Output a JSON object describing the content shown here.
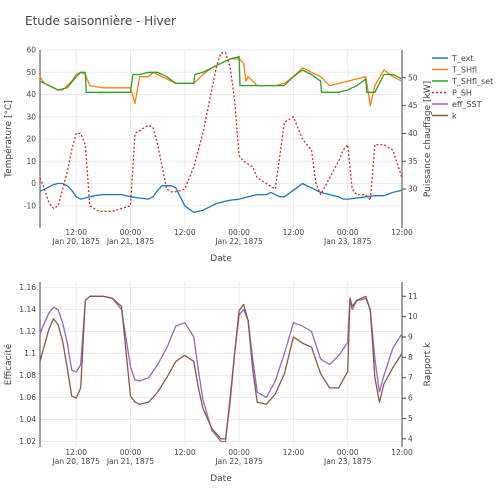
{
  "figure": {
    "title": "Etude saisonnière - Hiver"
  },
  "colors": {
    "T_ext": "#1f77b4",
    "T_SHfl": "#ff7f0e",
    "T_SHfl_set": "#2ca02c",
    "P_SH": "#d62728",
    "eff_SST": "#9467bd",
    "k": "#8c564b",
    "grid": "#ebebeb",
    "axis_line": "#444444"
  },
  "chart_data": [
    {
      "type": "line",
      "title": "",
      "xlabel": "Date",
      "ylabel": "Température [°C]",
      "y2label": "Puissance chauffage [kW]",
      "x_ticks": [
        {
          "h": 12,
          "label": "12:00",
          "sub": "Jan 20, 1875"
        },
        {
          "h": 24,
          "label": "00:00",
          "sub": "Jan 21, 1875"
        },
        {
          "h": 36,
          "label": "12:00",
          "sub": ""
        },
        {
          "h": 48,
          "label": "00:00",
          "sub": "Jan 22, 1875"
        },
        {
          "h": 60,
          "label": "12:00",
          "sub": ""
        },
        {
          "h": 72,
          "label": "00:00",
          "sub": "Jan 23, 1875"
        },
        {
          "h": 84,
          "label": "12:00",
          "sub": ""
        }
      ],
      "xlim_hours": [
        4,
        84
      ],
      "ylim": [
        -20,
        60
      ],
      "yticks": [
        -10,
        0,
        10,
        20,
        30,
        40,
        50,
        60
      ],
      "y2lim": [
        23,
        55
      ],
      "y2ticks": [
        30,
        35,
        40,
        45,
        50
      ],
      "grid": true,
      "legend": "right",
      "series": [
        {
          "name": "T_ext",
          "axis": "y",
          "dash": false,
          "x": [
            4,
            5,
            6,
            7,
            8,
            9,
            10,
            11,
            12,
            13,
            14,
            15,
            16,
            18,
            20,
            22,
            24,
            26,
            28,
            29,
            30,
            31,
            32,
            33,
            34,
            36,
            38,
            40,
            42,
            43,
            44,
            45,
            46,
            48,
            50,
            52,
            54,
            55,
            56,
            57,
            58,
            60,
            62,
            64,
            66,
            68,
            69,
            70,
            71,
            72,
            74,
            76,
            78,
            80,
            82,
            84
          ],
          "y": [
            -3.5,
            -2.5,
            -1.5,
            -0.5,
            0,
            0,
            -1,
            -3,
            -6,
            -7,
            -6.5,
            -6,
            -5.5,
            -5,
            -5,
            -5,
            -6,
            -6.5,
            -7,
            -6,
            -3,
            -1,
            -1,
            -1,
            -2,
            -10,
            -13,
            -12,
            -10,
            -9,
            -8.5,
            -8,
            -7.5,
            -7,
            -6,
            -5,
            -5,
            -4,
            -5,
            -6,
            -6,
            -3,
            0,
            -2,
            -4,
            -5,
            -5.5,
            -6,
            -7,
            -7,
            -6.5,
            -6,
            -5.5,
            -5.5,
            -4,
            -3
          ]
        },
        {
          "name": "T_SHfl",
          "axis": "y",
          "dash": false,
          "x": [
            4,
            5,
            6,
            7,
            8,
            9,
            10,
            11,
            12,
            13,
            14,
            15,
            18,
            22,
            24,
            25,
            26,
            28,
            29,
            30,
            32,
            34,
            36,
            38,
            40,
            42,
            44,
            46,
            48,
            49,
            49.5,
            50,
            51,
            52,
            54,
            56,
            58,
            60,
            62,
            64,
            66,
            67,
            68,
            70,
            72,
            74,
            76,
            77,
            78,
            80,
            82,
            84
          ],
          "y": [
            48,
            45,
            44,
            43,
            42,
            42,
            44,
            46,
            49,
            50,
            49,
            44,
            43,
            43,
            43,
            36,
            48,
            48,
            50,
            49,
            47,
            45,
            45,
            45,
            49,
            52,
            54,
            56,
            56,
            54,
            46,
            48,
            46,
            44,
            44,
            44,
            45,
            48,
            52,
            50,
            48,
            46,
            44,
            45,
            46,
            47,
            48,
            35,
            44,
            51,
            48,
            46
          ]
        },
        {
          "name": "T_SHfl_set",
          "axis": "y",
          "dash": false,
          "x": [
            4,
            6,
            8,
            10,
            12,
            13,
            14,
            14.2,
            18,
            24,
            24.5,
            26,
            28,
            30,
            32,
            34,
            36,
            38,
            38.2,
            40,
            42,
            44,
            46,
            48,
            48.2,
            52,
            56,
            58,
            60,
            62,
            64,
            66,
            66.2,
            70,
            72,
            74,
            76,
            76.2,
            78,
            80,
            82,
            84
          ],
          "y": [
            46,
            44,
            42,
            43,
            48,
            50,
            50,
            41,
            41,
            41,
            49,
            49,
            50,
            50,
            48,
            45,
            45,
            45,
            49,
            50,
            52,
            54,
            56,
            57,
            44,
            44,
            44,
            44,
            48,
            51,
            49,
            46,
            41,
            41,
            42,
            44,
            47,
            41,
            41,
            49,
            49,
            47
          ]
        },
        {
          "name": "P_SH",
          "axis": "y2",
          "dash": true,
          "x": [
            4,
            5,
            6,
            7,
            8,
            9,
            10,
            11,
            12,
            13,
            14,
            15,
            17,
            20,
            22,
            24,
            25,
            26,
            28,
            29,
            30,
            31,
            32,
            33,
            34,
            36,
            37,
            38,
            40,
            41,
            42,
            43,
            44,
            45,
            46,
            47,
            48,
            48.5,
            49,
            51,
            52,
            54,
            55,
            56,
            58,
            60,
            62,
            64,
            65,
            66,
            68,
            70,
            71,
            72,
            73,
            74,
            76,
            77,
            78,
            80,
            82,
            84
          ],
          "y": [
            32,
            30,
            27.5,
            26.5,
            27,
            30,
            33,
            37,
            40,
            40,
            38,
            27,
            26,
            26,
            26.5,
            27,
            40,
            40.5,
            41.5,
            41,
            38,
            34,
            30,
            29.5,
            29.5,
            30,
            32,
            34,
            40,
            44,
            48,
            52,
            54.5,
            54.5,
            52,
            46,
            36,
            35.5,
            35,
            34,
            32,
            31,
            30.5,
            30,
            42,
            43,
            39,
            37,
            31,
            29,
            32,
            35,
            37,
            38,
            30,
            29,
            29,
            28,
            38,
            38,
            37,
            32
          ]
        },
        {
          "name": "eff_SST",
          "axis": "none",
          "dash": false,
          "legend_only": true,
          "x": [],
          "y": []
        },
        {
          "name": "k",
          "axis": "none",
          "dash": false,
          "legend_only": true,
          "x": [],
          "y": []
        }
      ]
    },
    {
      "type": "line",
      "title": "",
      "xlabel": "Date",
      "ylabel": "Efficacité",
      "y2label": "Rapport k",
      "x_ticks": [
        {
          "h": 12,
          "label": "12:00",
          "sub": "Jan 20, 1875"
        },
        {
          "h": 24,
          "label": "00:00",
          "sub": "Jan 21, 1875"
        },
        {
          "h": 36,
          "label": "12:00",
          "sub": ""
        },
        {
          "h": 48,
          "label": "00:00",
          "sub": "Jan 22, 1875"
        },
        {
          "h": 60,
          "label": "12:00",
          "sub": ""
        },
        {
          "h": 72,
          "label": "00:00",
          "sub": "Jan 23, 1875"
        },
        {
          "h": 84,
          "label": "12:00",
          "sub": ""
        }
      ],
      "xlim_hours": [
        4,
        84
      ],
      "ylim": [
        1.015,
        1.165
      ],
      "yticks": [
        1.02,
        1.04,
        1.06,
        1.08,
        1.1,
        1.12,
        1.14,
        1.16
      ],
      "y2lim": [
        3.6,
        11.7
      ],
      "y2ticks": [
        4,
        5,
        6,
        7,
        8,
        9,
        10,
        11
      ],
      "grid": true,
      "series": [
        {
          "name": "eff_SST",
          "axis": "y",
          "dash": false,
          "x": [
            4,
            5,
            6,
            7,
            8,
            9,
            10,
            11,
            12,
            13,
            14,
            15,
            16,
            18,
            20,
            22,
            24,
            25,
            26,
            28,
            30,
            32,
            34,
            36,
            38,
            39,
            40,
            42,
            44,
            45,
            46,
            47,
            48,
            49,
            50,
            51,
            52,
            54,
            56,
            58,
            60,
            62,
            64,
            66,
            68,
            70,
            72,
            72.5,
            73,
            74,
            76,
            77,
            78,
            79,
            80,
            82,
            84
          ],
          "y": [
            1.118,
            1.128,
            1.137,
            1.142,
            1.14,
            1.128,
            1.11,
            1.085,
            1.083,
            1.09,
            1.148,
            1.152,
            1.152,
            1.152,
            1.15,
            1.14,
            1.088,
            1.076,
            1.075,
            1.078,
            1.09,
            1.105,
            1.125,
            1.128,
            1.115,
            1.085,
            1.058,
            1.03,
            1.02,
            1.02,
            1.06,
            1.1,
            1.135,
            1.14,
            1.13,
            1.095,
            1.065,
            1.06,
            1.075,
            1.1,
            1.128,
            1.125,
            1.12,
            1.095,
            1.09,
            1.098,
            1.11,
            1.15,
            1.14,
            1.148,
            1.15,
            1.14,
            1.095,
            1.065,
            1.08,
            1.105,
            1.118
          ]
        },
        {
          "name": "k",
          "axis": "y2",
          "dash": false,
          "x": [
            4,
            5,
            6,
            7,
            8,
            9,
            10,
            11,
            12,
            13,
            14,
            15,
            16,
            18,
            20,
            22,
            24,
            25,
            26,
            28,
            30,
            32,
            34,
            36,
            38,
            39,
            40,
            42,
            44,
            45,
            46,
            47,
            48,
            49,
            50,
            51,
            52,
            54,
            56,
            58,
            60,
            62,
            64,
            66,
            68,
            70,
            72,
            72.5,
            73,
            74,
            76,
            77,
            78,
            79,
            80,
            82,
            84
          ],
          "y": [
            7.8,
            8.6,
            9.4,
            9.9,
            9.6,
            8.8,
            7.5,
            6.1,
            6.0,
            6.5,
            10.8,
            11.0,
            11.0,
            11.0,
            10.9,
            10.5,
            6.1,
            5.8,
            5.7,
            5.8,
            6.3,
            7.0,
            7.8,
            8.1,
            7.8,
            6.5,
            5.5,
            4.5,
            4.0,
            4.0,
            5.8,
            8.2,
            10.3,
            10.6,
            9.8,
            7.4,
            5.8,
            5.7,
            6.2,
            7.2,
            9.0,
            8.7,
            8.5,
            7.2,
            6.5,
            6.5,
            7.3,
            10.9,
            10.5,
            10.8,
            11.0,
            10.3,
            7.0,
            5.8,
            6.7,
            7.5,
            8.2
          ]
        }
      ]
    }
  ]
}
